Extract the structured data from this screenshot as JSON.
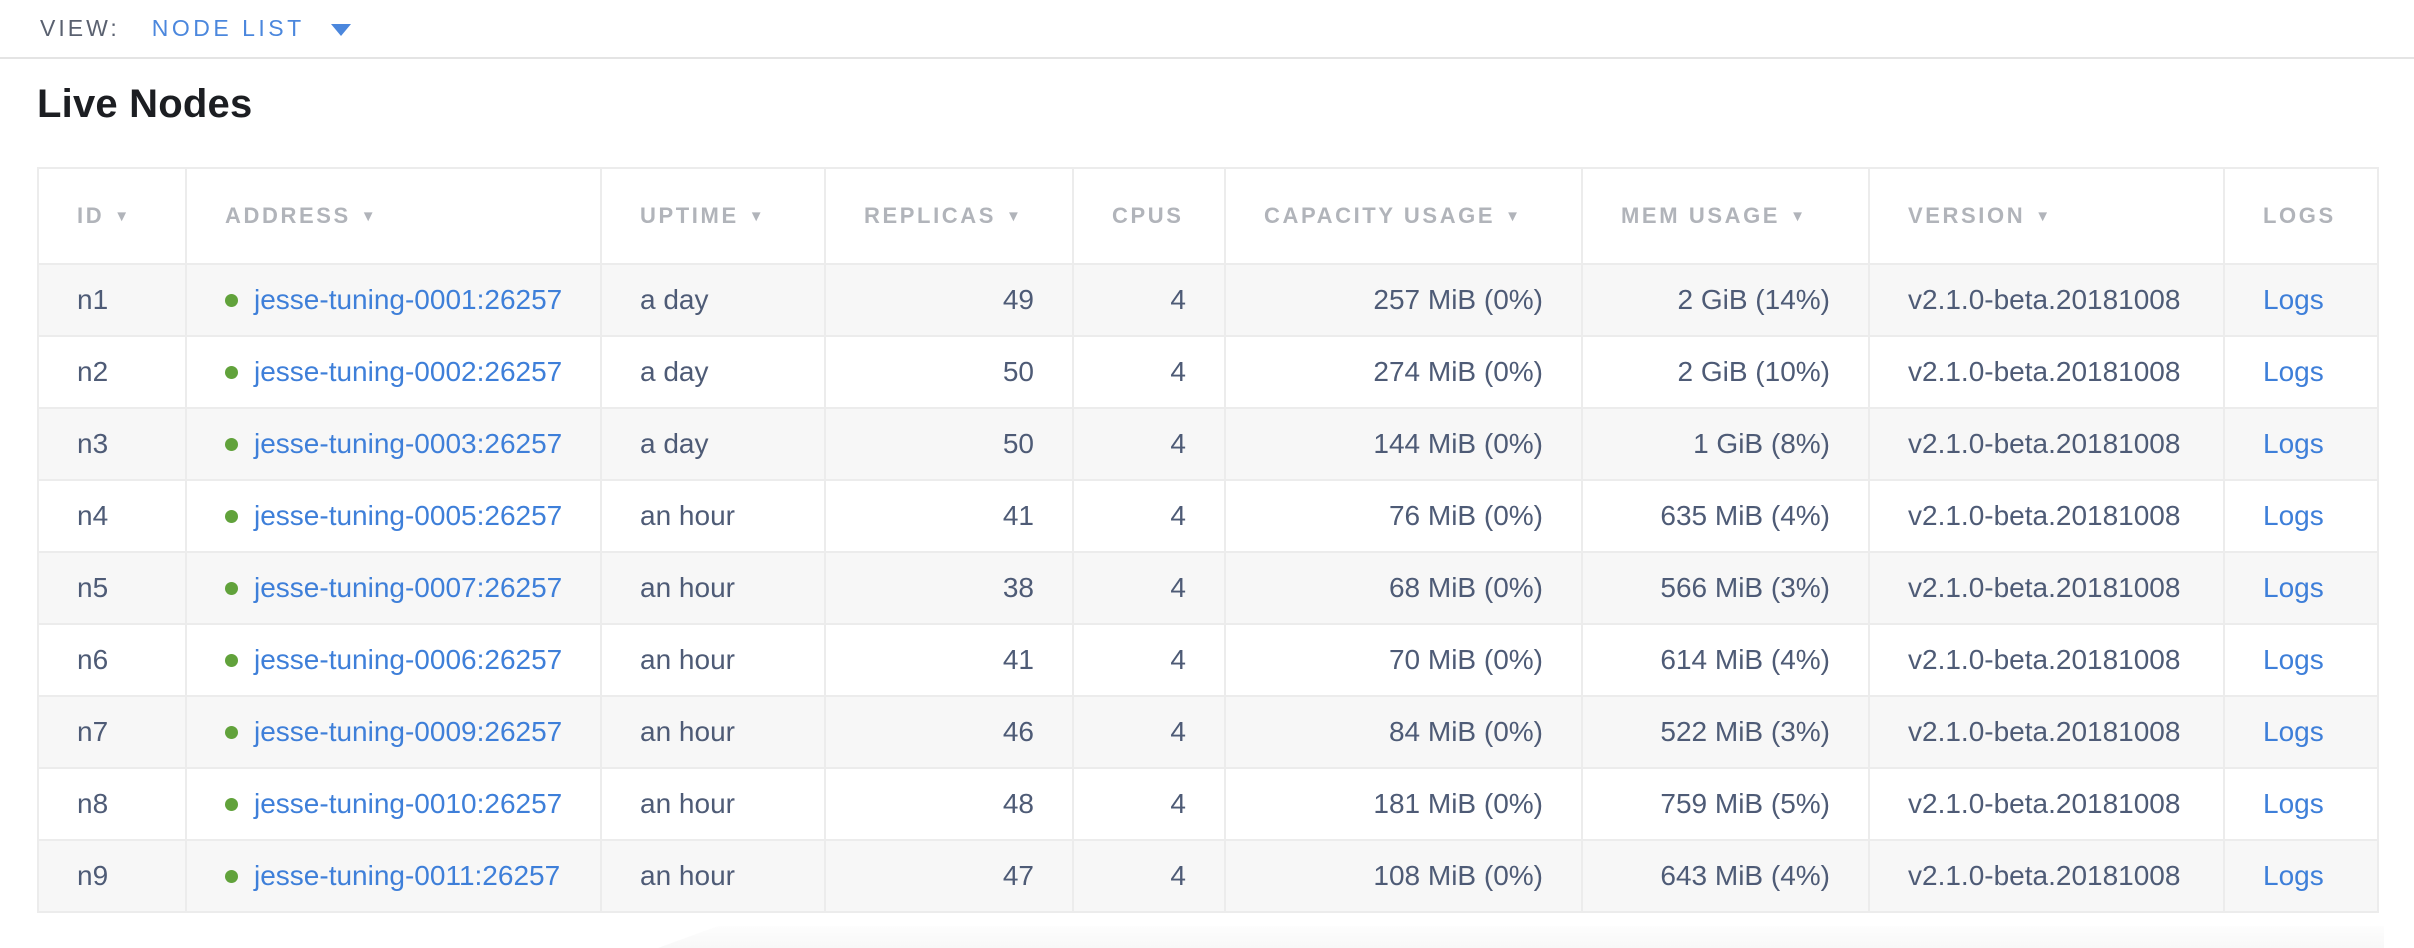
{
  "view_bar": {
    "label": "VIEW:",
    "selected": "NODE LIST"
  },
  "page": {
    "title": "Live Nodes"
  },
  "table": {
    "columns": [
      {
        "key": "id",
        "label": "ID",
        "sort_indicator": "▼"
      },
      {
        "key": "address",
        "label": "ADDRESS",
        "sort_indicator": "▼"
      },
      {
        "key": "uptime",
        "label": "UPTIME",
        "sort_indicator": "▼"
      },
      {
        "key": "replicas",
        "label": "REPLICAS",
        "sort_indicator": "▼"
      },
      {
        "key": "cpus",
        "label": "CPUS",
        "sort_indicator": ""
      },
      {
        "key": "capacity",
        "label": "CAPACITY USAGE",
        "sort_indicator": "▼"
      },
      {
        "key": "mem",
        "label": "MEM USAGE",
        "sort_indicator": "▼"
      },
      {
        "key": "version",
        "label": "VERSION",
        "sort_indicator": "▼"
      },
      {
        "key": "logs",
        "label": "LOGS",
        "sort_indicator": ""
      }
    ],
    "rows": [
      {
        "id": "n1",
        "status": "live",
        "address": "jesse-tuning-0001:26257",
        "uptime": "a day",
        "replicas": "49",
        "cpus": "4",
        "capacity": "257 MiB (0%)",
        "mem": "2 GiB (14%)",
        "version": "v2.1.0-beta.20181008",
        "logs": "Logs"
      },
      {
        "id": "n2",
        "status": "live",
        "address": "jesse-tuning-0002:26257",
        "uptime": "a day",
        "replicas": "50",
        "cpus": "4",
        "capacity": "274 MiB (0%)",
        "mem": "2 GiB (10%)",
        "version": "v2.1.0-beta.20181008",
        "logs": "Logs"
      },
      {
        "id": "n3",
        "status": "live",
        "address": "jesse-tuning-0003:26257",
        "uptime": "a day",
        "replicas": "50",
        "cpus": "4",
        "capacity": "144 MiB (0%)",
        "mem": "1 GiB (8%)",
        "version": "v2.1.0-beta.20181008",
        "logs": "Logs"
      },
      {
        "id": "n4",
        "status": "live",
        "address": "jesse-tuning-0005:26257",
        "uptime": "an hour",
        "replicas": "41",
        "cpus": "4",
        "capacity": "76 MiB (0%)",
        "mem": "635 MiB (4%)",
        "version": "v2.1.0-beta.20181008",
        "logs": "Logs"
      },
      {
        "id": "n5",
        "status": "live",
        "address": "jesse-tuning-0007:26257",
        "uptime": "an hour",
        "replicas": "38",
        "cpus": "4",
        "capacity": "68 MiB (0%)",
        "mem": "566 MiB (3%)",
        "version": "v2.1.0-beta.20181008",
        "logs": "Logs"
      },
      {
        "id": "n6",
        "status": "live",
        "address": "jesse-tuning-0006:26257",
        "uptime": "an hour",
        "replicas": "41",
        "cpus": "4",
        "capacity": "70 MiB (0%)",
        "mem": "614 MiB (4%)",
        "version": "v2.1.0-beta.20181008",
        "logs": "Logs"
      },
      {
        "id": "n7",
        "status": "live",
        "address": "jesse-tuning-0009:26257",
        "uptime": "an hour",
        "replicas": "46",
        "cpus": "4",
        "capacity": "84 MiB (0%)",
        "mem": "522 MiB (3%)",
        "version": "v2.1.0-beta.20181008",
        "logs": "Logs"
      },
      {
        "id": "n8",
        "status": "live",
        "address": "jesse-tuning-0010:26257",
        "uptime": "an hour",
        "replicas": "48",
        "cpus": "4",
        "capacity": "181 MiB (0%)",
        "mem": "759 MiB (5%)",
        "version": "v2.1.0-beta.20181008",
        "logs": "Logs"
      },
      {
        "id": "n9",
        "status": "live",
        "address": "jesse-tuning-0011:26257",
        "uptime": "an hour",
        "replicas": "47",
        "cpus": "4",
        "capacity": "108 MiB (0%)",
        "mem": "643 MiB (4%)",
        "version": "v2.1.0-beta.20181008",
        "logs": "Logs"
      }
    ]
  },
  "colors": {
    "accent_blue": "#3e7fd9",
    "view_selected_blue": "#4b87dd",
    "live_status_green": "#61a23b",
    "header_text_gray": "#b1b4ba",
    "cell_text_slate": "#4e5b76",
    "row_alt_background": "#f7f7f7",
    "border_gray": "#ececec"
  }
}
